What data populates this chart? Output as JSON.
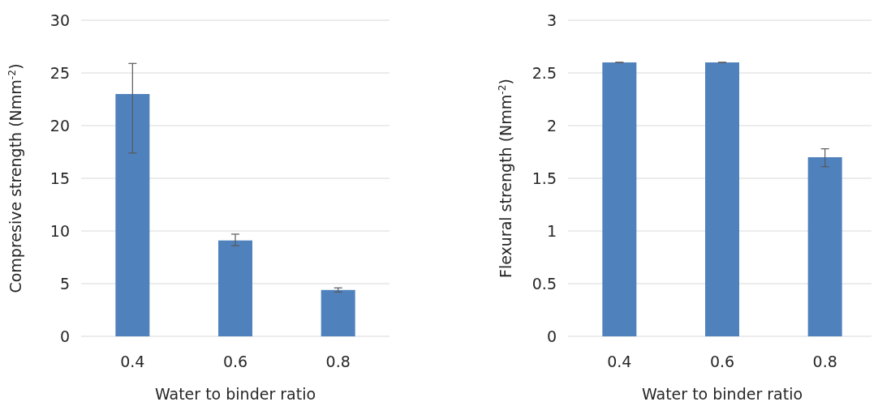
{
  "chart_data": [
    {
      "type": "bar",
      "ylabel": "Compresive strength (Nmm$^{-2}$)",
      "xlabel": "Water to binder ratio",
      "categories": [
        "0.4",
        "0.6",
        "0.8"
      ],
      "values": [
        23,
        9.1,
        4.4
      ],
      "errors": [
        [
          17.4,
          25.9
        ],
        [
          8.6,
          9.7
        ],
        [
          4.2,
          4.6
        ]
      ],
      "color": "#4f81bd",
      "ylim": [
        0,
        30
      ],
      "yticks": [
        0,
        5,
        10,
        15,
        20,
        25,
        30
      ],
      "grid": "y"
    },
    {
      "type": "bar",
      "ylabel": "Flexural strength (Nmm$^{-2}$)",
      "xlabel": "Water to binder ratio",
      "categories": [
        "0.4",
        "0.6",
        "0.8"
      ],
      "values": [
        2.6,
        2.6,
        1.7
      ],
      "errors": [
        0,
        0,
        [
          1.61,
          1.78
        ]
      ],
      "color": "#4f81bd",
      "ylim": [
        0,
        3
      ],
      "yticks": [
        0,
        0.5,
        1,
        1.5,
        2,
        2.5,
        3
      ],
      "grid": "y"
    }
  ]
}
